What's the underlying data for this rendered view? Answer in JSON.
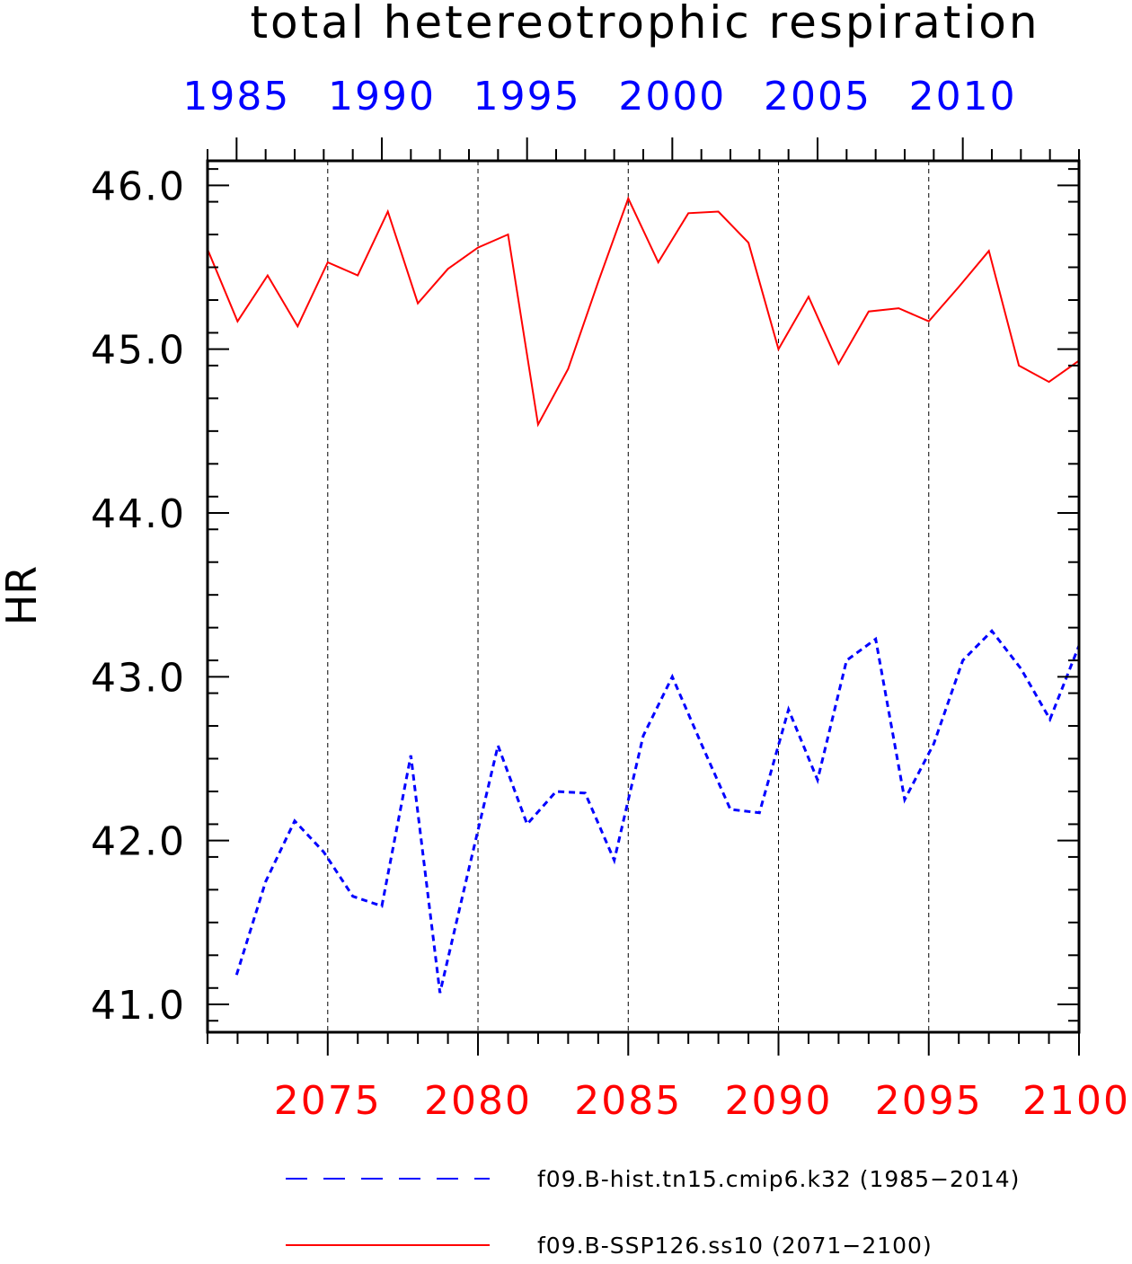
{
  "chart_data": {
    "type": "line",
    "title": "total hetereotrophic respiration",
    "ylabel": "HR",
    "ylim": [
      40.83,
      46.15
    ],
    "yticks": [
      41.0,
      42.0,
      43.0,
      44.0,
      45.0,
      46.0
    ],
    "ytick_labels": [
      "41.0",
      "42.0",
      "43.0",
      "44.0",
      "45.0",
      "46.0"
    ],
    "grid": "vertical dashed lines at bottom-axis major ticks",
    "legend_position": "bottom",
    "top_axis": {
      "color": "#0000ff",
      "range": [
        1984,
        2014
      ],
      "ticks": [
        1985,
        1990,
        1995,
        2000,
        2005,
        2010
      ],
      "tick_labels": [
        "1985",
        "1990",
        "1995",
        "2000",
        "2005",
        "2010"
      ]
    },
    "bottom_axis": {
      "color": "#ff0000",
      "range": [
        2071,
        2100
      ],
      "ticks": [
        2075,
        2080,
        2085,
        2090,
        2095,
        2100
      ],
      "tick_labels": [
        "2075",
        "2080",
        "2085",
        "2090",
        "2095",
        "2100"
      ]
    },
    "series": [
      {
        "name": "f09.B-hist.tn15.cmip6.k32 (1985−2014)",
        "axis": "top",
        "color": "#0000ff",
        "style": "dashed",
        "x": [
          1985,
          1986,
          1987,
          1988,
          1989,
          1990,
          1991,
          1992,
          1993,
          1994,
          1995,
          1996,
          1997,
          1998,
          1999,
          2000,
          2001,
          2002,
          2003,
          2004,
          2005,
          2006,
          2007,
          2008,
          2009,
          2010,
          2011,
          2012,
          2013,
          2014
        ],
        "values": [
          41.18,
          41.75,
          42.12,
          41.93,
          41.66,
          41.6,
          42.52,
          41.07,
          41.83,
          42.58,
          42.1,
          42.3,
          42.29,
          41.88,
          42.64,
          43.0,
          42.59,
          42.19,
          42.17,
          42.8,
          42.37,
          43.1,
          43.23,
          42.25,
          42.59,
          43.1,
          43.28,
          43.05,
          42.74,
          43.19
        ]
      },
      {
        "name": "f09.B-SSP126.ss10 (2071−2100)",
        "axis": "bottom",
        "color": "#ff0000",
        "style": "solid",
        "x": [
          2071,
          2072,
          2073,
          2074,
          2075,
          2076,
          2077,
          2078,
          2079,
          2080,
          2081,
          2082,
          2083,
          2084,
          2085,
          2086,
          2087,
          2088,
          2089,
          2090,
          2091,
          2092,
          2093,
          2094,
          2095,
          2096,
          2097,
          2098,
          2099,
          2100
        ],
        "values": [
          45.61,
          45.17,
          45.45,
          45.14,
          45.53,
          45.45,
          45.84,
          45.28,
          45.49,
          45.62,
          45.7,
          44.54,
          44.88,
          45.41,
          45.92,
          45.53,
          45.83,
          45.84,
          45.65,
          45.0,
          45.32,
          44.91,
          45.23,
          45.25,
          45.17,
          45.38,
          45.6,
          44.9,
          44.8,
          44.93
        ]
      }
    ]
  }
}
